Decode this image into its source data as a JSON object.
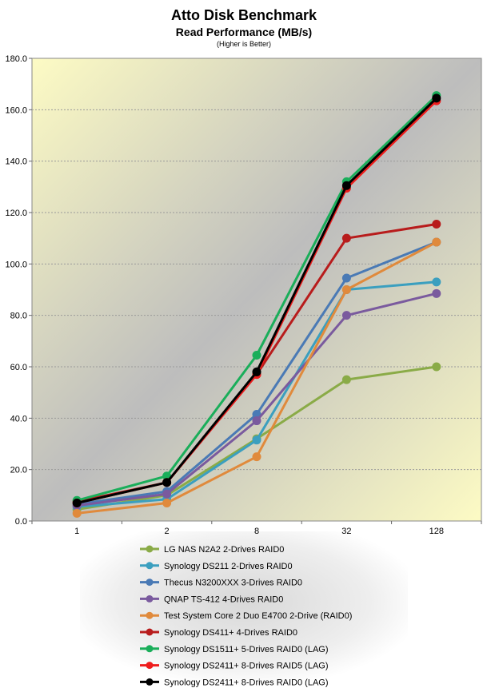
{
  "chart_data": {
    "type": "line",
    "title": "Atto Disk Benchmark",
    "subtitle": "Read Performance (MB/s)",
    "note": "(Higher is Better)",
    "xlabel": "",
    "ylabel": "",
    "categories": [
      "1",
      "2",
      "8",
      "32",
      "128"
    ],
    "ylim": [
      0,
      180
    ],
    "yticks": [
      "0.0",
      "20.0",
      "40.0",
      "60.0",
      "80.0",
      "100.0",
      "120.0",
      "140.0",
      "160.0",
      "180.0"
    ],
    "grid": true,
    "legend_position": "bottom",
    "series": [
      {
        "name": "LG NAS N2A2 2-Drives RAID0",
        "color": "#8aab47",
        "values": [
          4.5,
          10.0,
          32.0,
          55.0,
          60.0
        ]
      },
      {
        "name": "Synology DS211 2-Drives RAID0",
        "color": "#3b9fbf",
        "values": [
          5.5,
          8.5,
          31.5,
          90.0,
          93.0
        ]
      },
      {
        "name": "Thecus N3200XXX 3-Drives RAID0",
        "color": "#4a7ab5",
        "values": [
          6.5,
          11.5,
          41.5,
          94.5,
          108.5
        ]
      },
      {
        "name": "QNAP TS-412 4-Drives RAID0",
        "color": "#7a5a9e",
        "values": [
          6.0,
          10.5,
          39.0,
          80.0,
          88.5
        ]
      },
      {
        "name": "Test System Core 2 Duo E4700 2-Drive (RAID0)",
        "color": "#e08a3c",
        "values": [
          3.0,
          7.0,
          25.0,
          90.0,
          108.5
        ]
      },
      {
        "name": "Synology DS411+ 4-Drives RAID0",
        "color": "#b81c1c",
        "values": [
          7.5,
          15.0,
          57.0,
          110.0,
          115.5
        ]
      },
      {
        "name": "Synology DS1511+ 5-Drives RAID0 (LAG)",
        "color": "#1aae5a",
        "values": [
          8.0,
          17.5,
          64.5,
          132.0,
          165.5
        ]
      },
      {
        "name": "Synology DS2411+ 8-Drives RAID5 (LAG)",
        "color": "#ee1c1c",
        "values": [
          7.0,
          15.0,
          57.0,
          129.5,
          163.5
        ]
      },
      {
        "name": "Synology DS2411+ 8-Drives RAID0 (LAG)",
        "color": "#000000",
        "values": [
          7.0,
          15.0,
          58.0,
          130.5,
          164.5
        ]
      }
    ]
  }
}
